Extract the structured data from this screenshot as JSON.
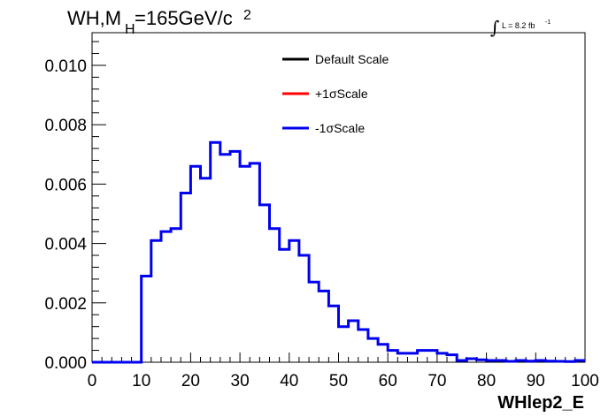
{
  "chart_data": {
    "type": "line",
    "title": {
      "main": "WH,M",
      "sub": "H",
      "rest": "=165GeV/c",
      "sup": "2"
    },
    "luminosity": {
      "integral_symbol": "∫",
      "text": "L = 8.2 fb",
      "sup": "-1"
    },
    "xlabel": "WHlep2_E",
    "ylabel": "",
    "xlim": [
      0,
      100
    ],
    "ylim": [
      0,
      0.0111
    ],
    "x_ticks": [
      "0",
      "10",
      "20",
      "30",
      "40",
      "50",
      "60",
      "70",
      "80",
      "90",
      "100"
    ],
    "y_ticks": [
      "0.000",
      "0.002",
      "0.004",
      "0.006",
      "0.008",
      "0.010"
    ],
    "bin_edges": [
      0,
      2,
      4,
      6,
      8,
      10,
      12,
      14,
      16,
      18,
      20,
      22,
      24,
      26,
      28,
      30,
      32,
      34,
      36,
      38,
      40,
      42,
      44,
      46,
      48,
      50,
      52,
      54,
      56,
      58,
      60,
      62,
      64,
      66,
      68,
      70,
      72,
      74,
      76,
      78,
      80,
      82,
      84,
      86,
      88,
      90,
      92,
      94,
      96,
      98,
      100
    ],
    "legend": [
      {
        "label": "Default Scale",
        "color": "#000000"
      },
      {
        "label": "+1σScale",
        "color": "#ff0000"
      },
      {
        "label": "-1σScale",
        "color": "#0000ee"
      }
    ],
    "series": [
      {
        "name": "-1σScale",
        "color": "#0000ee",
        "values": [
          0,
          0,
          0,
          0,
          0,
          0.0029,
          0.0041,
          0.0044,
          0.0045,
          0.0057,
          0.0066,
          0.0062,
          0.0074,
          0.007,
          0.0071,
          0.0066,
          0.0067,
          0.0053,
          0.0045,
          0.0038,
          0.0041,
          0.0036,
          0.0027,
          0.0024,
          0.0019,
          0.0012,
          0.0014,
          0.0011,
          0.0008,
          0.0006,
          0.0004,
          0.0003,
          0.0003,
          0.0004,
          0.0004,
          0.0003,
          0.00025,
          6e-05,
          0.00012,
          8e-05,
          6e-05,
          6e-05,
          3e-05,
          6e-05,
          4e-05,
          6e-05,
          4e-05,
          3e-05,
          2e-05,
          6e-05
        ]
      }
    ]
  }
}
